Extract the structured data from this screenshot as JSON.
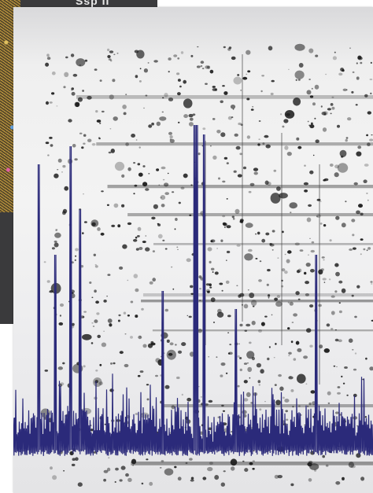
{
  "background_slide": {
    "title_fragment": "Ssp II",
    "art_icon": "network-graph-icon"
  },
  "gel": {
    "description_icon": "2d-gel-electrophoresis-image",
    "trace_color": "#2b2a7a",
    "spot_color": "#1a1a1a"
  }
}
